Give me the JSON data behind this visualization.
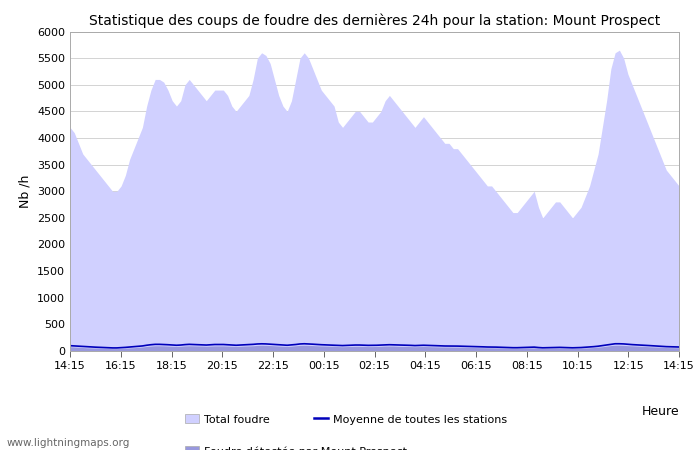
{
  "title": "Statistique des coups de foudre des dernières 24h pour la station: Mount Prospect",
  "ylabel": "Nb /h",
  "xlabel": "Heure",
  "xtick_labels": [
    "14:15",
    "16:15",
    "18:15",
    "20:15",
    "22:15",
    "00:15",
    "02:15",
    "04:15",
    "06:15",
    "08:15",
    "10:15",
    "12:15",
    "14:15"
  ],
  "ylim": [
    0,
    6000
  ],
  "yticks": [
    0,
    500,
    1000,
    1500,
    2000,
    2500,
    3000,
    3500,
    4000,
    4500,
    5000,
    5500,
    6000
  ],
  "fill_color_total": "#d0d0ff",
  "fill_color_detected": "#9898dd",
  "line_color_moyenne": "#0000bb",
  "background_color": "#ffffff",
  "grid_color": "#cccccc",
  "watermark": "www.lightningmaps.org",
  "legend_total": "Total foudre",
  "legend_moyenne": "Moyenne de toutes les stations",
  "legend_detected": "Foudre détectée par Mount Prospect",
  "total_foudre": [
    4200,
    4100,
    3900,
    3700,
    3600,
    3500,
    3400,
    3300,
    3200,
    3100,
    3000,
    3000,
    3100,
    3300,
    3600,
    3800,
    4000,
    4200,
    4600,
    4900,
    5100,
    5100,
    5050,
    4900,
    4700,
    4600,
    4700,
    5000,
    5100,
    5000,
    4900,
    4800,
    4700,
    4800,
    4900,
    4900,
    4900,
    4800,
    4600,
    4500,
    4600,
    4700,
    4800,
    5100,
    5500,
    5600,
    5550,
    5400,
    5100,
    4800,
    4600,
    4500,
    4700,
    5100,
    5500,
    5600,
    5500,
    5300,
    5100,
    4900,
    4800,
    4700,
    4600,
    4300,
    4200,
    4300,
    4400,
    4500,
    4500,
    4400,
    4300,
    4300,
    4400,
    4500,
    4700,
    4800,
    4700,
    4600,
    4500,
    4400,
    4300,
    4200,
    4300,
    4400,
    4300,
    4200,
    4100,
    4000,
    3900,
    3900,
    3800,
    3800,
    3700,
    3600,
    3500,
    3400,
    3300,
    3200,
    3100,
    3100,
    3000,
    2900,
    2800,
    2700,
    2600,
    2600,
    2700,
    2800,
    2900,
    3000,
    2700,
    2500,
    2600,
    2700,
    2800,
    2800,
    2700,
    2600,
    2500,
    2600,
    2700,
    2900,
    3100,
    3400,
    3700,
    4200,
    4700,
    5300,
    5600,
    5650,
    5500,
    5200,
    5000,
    4800,
    4600,
    4400,
    4200,
    4000,
    3800,
    3600,
    3400,
    3300,
    3200,
    3100
  ],
  "detected_foudre": [
    80,
    75,
    70,
    65,
    60,
    58,
    55,
    52,
    50,
    48,
    45,
    45,
    48,
    52,
    58,
    62,
    68,
    75,
    85,
    92,
    98,
    98,
    96,
    92,
    88,
    85,
    88,
    95,
    98,
    96,
    94,
    92,
    88,
    92,
    95,
    95,
    95,
    92,
    88,
    85,
    88,
    92,
    95,
    98,
    105,
    108,
    106,
    103,
    98,
    93,
    88,
    85,
    90,
    98,
    105,
    108,
    105,
    102,
    98,
    94,
    92,
    90,
    88,
    83,
    80,
    83,
    85,
    88,
    88,
    85,
    83,
    83,
    85,
    88,
    92,
    93,
    92,
    88,
    86,
    85,
    83,
    80,
    83,
    85,
    83,
    80,
    78,
    76,
    75,
    75,
    73,
    73,
    71,
    69,
    67,
    65,
    63,
    62,
    60,
    60,
    58,
    56,
    54,
    52,
    50,
    50,
    52,
    54,
    56,
    58,
    52,
    48,
    50,
    52,
    54,
    54,
    52,
    50,
    48,
    50,
    52,
    56,
    60,
    65,
    71,
    80,
    90,
    102,
    108,
    108,
    105,
    100,
    96,
    92,
    88,
    85,
    80,
    76,
    73,
    69,
    65,
    63,
    62,
    60
  ],
  "moyenne_foudre": [
    100,
    95,
    88,
    83,
    78,
    75,
    72,
    68,
    65,
    62,
    58,
    58,
    62,
    68,
    75,
    80,
    88,
    95,
    108,
    118,
    125,
    125,
    122,
    118,
    112,
    108,
    112,
    120,
    125,
    122,
    120,
    118,
    112,
    118,
    122,
    122,
    122,
    118,
    112,
    108,
    112,
    118,
    122,
    125,
    132,
    135,
    133,
    128,
    122,
    116,
    112,
    108,
    114,
    122,
    132,
    136,
    133,
    128,
    122,
    118,
    115,
    112,
    110,
    106,
    102,
    106,
    108,
    112,
    112,
    108,
    106,
    106,
    108,
    112,
    116,
    118,
    116,
    112,
    110,
    108,
    106,
    102,
    106,
    108,
    106,
    102,
    100,
    96,
    94,
    94,
    92,
    92,
    90,
    87,
    85,
    82,
    80,
    78,
    75,
    75,
    73,
    70,
    68,
    65,
    62,
    62,
    65,
    68,
    70,
    73,
    65,
    60,
    62,
    65,
    68,
    68,
    65,
    62,
    60,
    62,
    65,
    70,
    76,
    82,
    90,
    102,
    114,
    128,
    136,
    136,
    133,
    126,
    120,
    116,
    112,
    108,
    102,
    96,
    92,
    87,
    82,
    80,
    78,
    75
  ]
}
